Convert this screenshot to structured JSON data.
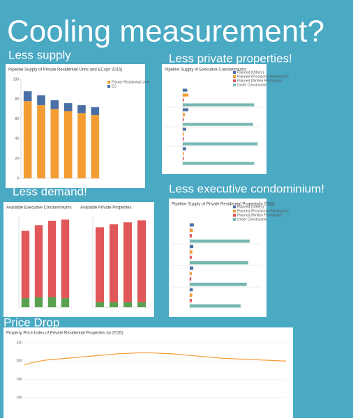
{
  "slide": {
    "title": "Cooling measurement?",
    "labels": [
      "Less supply",
      "Less private properties!",
      "Less demand!",
      "Less executive condominium!",
      "Price Drop"
    ]
  },
  "chart_data": [
    {
      "type": "bar",
      "stacked": true,
      "title": "Pipeline Supply of Private Residential Units and ECs(in 2015)",
      "series": [
        {
          "name": "Private Residential Units",
          "color": "#f39c34",
          "values": [
            78,
            74,
            70,
            68,
            66,
            64
          ]
        },
        {
          "name": "EC",
          "color": "#4a6fa5",
          "values": [
            10,
            10,
            9,
            8,
            8,
            8
          ]
        }
      ],
      "ylim": [
        0,
        100
      ],
      "yticks": [
        0,
        20,
        40,
        60,
        80,
        100
      ],
      "legend": "right"
    },
    {
      "type": "hbar",
      "title": "Pipeline Supply of Executive Condominiums",
      "series": [
        {
          "name": "Planned (Others)",
          "color": "#4a6fa5",
          "values": [
            4,
            5,
            3,
            3
          ]
        },
        {
          "name": "Planned (Provisional Permission)",
          "color": "#f39c34",
          "values": [
            5,
            2,
            1,
            1
          ]
        },
        {
          "name": "Planned (Written Permission)",
          "color": "#e0575b",
          "values": [
            1,
            1,
            1,
            1
          ]
        },
        {
          "name": "Under Construction",
          "color": "#76b7b2",
          "values": [
            64,
            63,
            67,
            64
          ]
        }
      ],
      "xlim": [
        0,
        70
      ],
      "legend": "top-right"
    },
    {
      "type": "bar",
      "stacked": true,
      "title": "Available Executive Condominiums",
      "series": [
        {
          "color": "#59a14f",
          "values": [
            8,
            9,
            9,
            8
          ]
        },
        {
          "color": "#e15759",
          "values": [
            60,
            64,
            68,
            70
          ]
        }
      ],
      "ylim": [
        0,
        80
      ]
    },
    {
      "type": "bar",
      "stacked": true,
      "title": "Available Private Properties",
      "series": [
        {
          "color": "#59a14f",
          "values": [
            5,
            5,
            5,
            5
          ]
        },
        {
          "color": "#e15759",
          "values": [
            75,
            78,
            80,
            82
          ]
        }
      ],
      "ylim": [
        0,
        90
      ]
    },
    {
      "type": "hbar",
      "title": "Pipeline Supply of Private Residential Property(in 2015)",
      "series": [
        {
          "name": "Planned (Others)",
          "color": "#4a6fa5",
          "values": [
            8,
            7,
            7,
            6
          ]
        },
        {
          "name": "Planned (Provisional Permission)",
          "color": "#f39c34",
          "values": [
            6,
            5,
            4,
            5
          ]
        },
        {
          "name": "Planned (Written Permission)",
          "color": "#e0575b",
          "values": [
            4,
            4,
            3,
            4
          ]
        },
        {
          "name": "Under Construction",
          "color": "#76b7b2",
          "values": [
            118,
            115,
            112,
            100
          ]
        }
      ],
      "xlim": [
        0,
        140
      ],
      "legend": "top-right"
    },
    {
      "type": "line",
      "title": "Property Price Index of Private Residential Properties (in 2015)",
      "series": [
        {
          "color": "#f39c34",
          "values": [
            196,
            199,
            201,
            202,
            203,
            204,
            205,
            206,
            207,
            208,
            208.5,
            209,
            209,
            208.5,
            208,
            207,
            206,
            205,
            204,
            203,
            202.5,
            202,
            201.5,
            201,
            200.5,
            200
          ]
        }
      ],
      "ylim": [
        150,
        220
      ],
      "yticks": [
        160,
        180,
        200,
        220
      ],
      "grid": true
    }
  ]
}
